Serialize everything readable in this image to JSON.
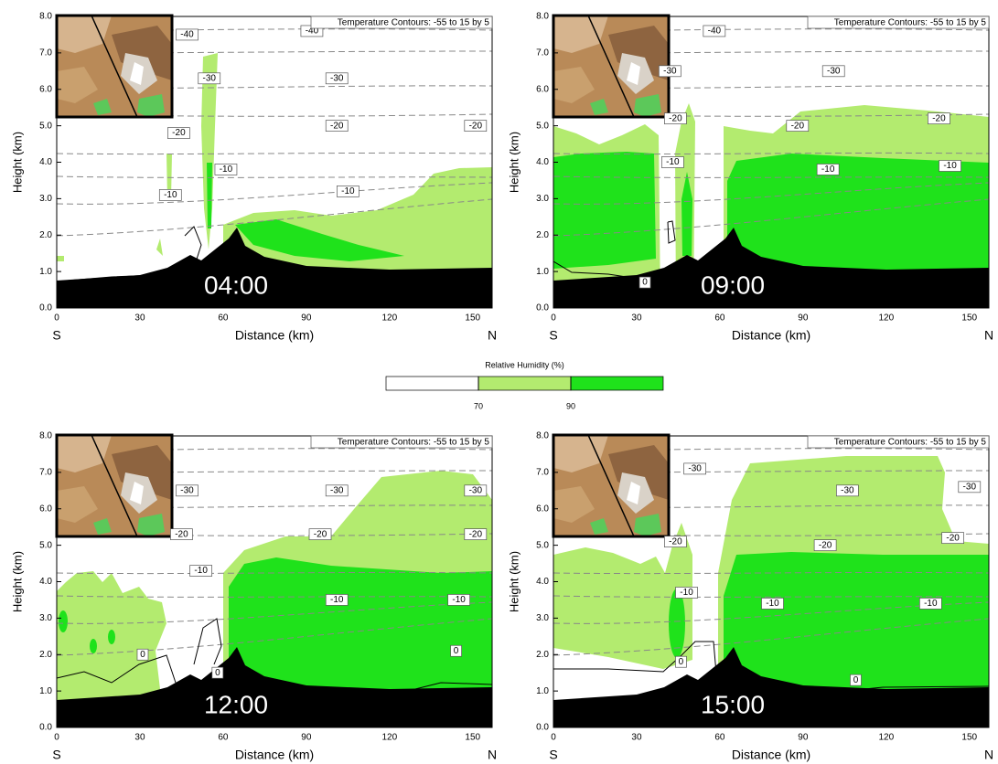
{
  "chart_data": [
    {
      "type": "contour",
      "title": "04:00",
      "subtitle": "Temperature Contours: -55 to 15 by 5",
      "xlabel": "Distance (km)",
      "ylabel": "Height (km)",
      "xstart_label": "S",
      "xend_label": "N",
      "xlim": [
        0,
        157
      ],
      "ylim": [
        0,
        8
      ],
      "xticks": [
        0,
        30,
        60,
        90,
        120,
        150
      ],
      "yticks": [
        {
          "value": 0,
          "label": "0.0"
        },
        {
          "value": 1,
          "label": "1.0"
        },
        {
          "value": 2,
          "label": "2.0"
        },
        {
          "value": 3,
          "label": "3.0"
        },
        {
          "value": 4,
          "label": "4.0"
        },
        {
          "value": 5,
          "label": "5.0"
        },
        {
          "value": 6,
          "label": "6.0"
        },
        {
          "value": 7,
          "label": "7.0"
        },
        {
          "value": 8,
          "label": "8.0"
        }
      ],
      "contour_labels": {
        "x": [
          47,
          92,
          55,
          101,
          44,
          101,
          151,
          61,
          41,
          105
        ],
        "y": [
          7.5,
          7.6,
          6.3,
          6.3,
          4.8,
          5.0,
          5.0,
          3.8,
          3.1,
          3.2
        ],
        "values": [
          -40,
          -40,
          -30,
          -30,
          -20,
          -20,
          -20,
          -10,
          -10,
          -10
        ]
      }
    },
    {
      "type": "contour",
      "title": "09:00",
      "subtitle": "Temperature Contours: -55 to 15 by 5",
      "xlabel": "Distance (km)",
      "ylabel": "Height (km)",
      "xstart_label": "S",
      "xend_label": "N",
      "xlim": [
        0,
        157
      ],
      "ylim": [
        0,
        8
      ],
      "xticks": [
        0,
        30,
        60,
        90,
        120,
        150
      ],
      "yticks": [
        {
          "value": 0,
          "label": "0.0"
        },
        {
          "value": 1,
          "label": "1.0"
        },
        {
          "value": 2,
          "label": "2.0"
        },
        {
          "value": 3,
          "label": "3.0"
        },
        {
          "value": 4,
          "label": "4.0"
        },
        {
          "value": 5,
          "label": "5.0"
        },
        {
          "value": 6,
          "label": "6.0"
        },
        {
          "value": 7,
          "label": "7.0"
        },
        {
          "value": 8,
          "label": "8.0"
        }
      ],
      "contour_labels": {
        "x": [
          58,
          42,
          101,
          44,
          88,
          139,
          43,
          99,
          143,
          33
        ],
        "y": [
          7.6,
          6.5,
          6.5,
          5.2,
          5.0,
          5.2,
          4.0,
          3.8,
          3.9,
          0.7
        ],
        "values": [
          -40,
          -30,
          -30,
          -20,
          -20,
          -20,
          -10,
          -10,
          -10,
          0
        ]
      }
    },
    {
      "type": "contour",
      "title": "12:00",
      "subtitle": "Temperature Contours: -55 to 15 by 5",
      "xlabel": "Distance (km)",
      "ylabel": "Height (km)",
      "xstart_label": "S",
      "xend_label": "N",
      "xlim": [
        0,
        157
      ],
      "ylim": [
        0,
        8
      ],
      "xticks": [
        0,
        30,
        60,
        90,
        120,
        150
      ],
      "yticks": [
        {
          "value": 0,
          "label": "0.0"
        },
        {
          "value": 1,
          "label": "1.0"
        },
        {
          "value": 2,
          "label": "2.0"
        },
        {
          "value": 3,
          "label": "3.0"
        },
        {
          "value": 4,
          "label": "4.0"
        },
        {
          "value": 5,
          "label": "5.0"
        },
        {
          "value": 6,
          "label": "6.0"
        },
        {
          "value": 7,
          "label": "7.0"
        },
        {
          "value": 8,
          "label": "8.0"
        }
      ],
      "contour_labels": {
        "x": [
          47,
          101,
          151,
          45,
          95,
          151,
          52,
          101,
          145,
          31,
          58,
          144
        ],
        "y": [
          6.5,
          6.5,
          6.5,
          5.3,
          5.3,
          5.3,
          4.3,
          3.5,
          3.5,
          2.0,
          1.5,
          2.1
        ],
        "values": [
          -30,
          -30,
          -30,
          -20,
          -20,
          -20,
          -10,
          -10,
          -10,
          0,
          0,
          0
        ]
      }
    },
    {
      "type": "contour",
      "title": "15:00",
      "subtitle": "Temperature Contours: -55 to 15 by 5",
      "xlabel": "Distance (km)",
      "ylabel": "Height (km)",
      "xstart_label": "S",
      "xend_label": "N",
      "xlim": [
        0,
        157
      ],
      "ylim": [
        0,
        8
      ],
      "xticks": [
        0,
        30,
        60,
        90,
        120,
        150
      ],
      "yticks": [
        {
          "value": 0,
          "label": "0.0"
        },
        {
          "value": 1,
          "label": "1.0"
        },
        {
          "value": 2,
          "label": "2.0"
        },
        {
          "value": 3,
          "label": "3.0"
        },
        {
          "value": 4,
          "label": "4.0"
        },
        {
          "value": 5,
          "label": "5.0"
        },
        {
          "value": 6,
          "label": "6.0"
        },
        {
          "value": 7,
          "label": "7.0"
        },
        {
          "value": 8,
          "label": "8.0"
        }
      ],
      "contour_labels": {
        "x": [
          51,
          106,
          150,
          44,
          98,
          144,
          48,
          79,
          136,
          46,
          109
        ],
        "y": [
          7.1,
          6.5,
          6.6,
          5.1,
          5.0,
          5.2,
          3.7,
          3.4,
          3.4,
          1.8,
          1.3
        ],
        "values": [
          -30,
          -30,
          -30,
          -20,
          -20,
          -20,
          -10,
          -10,
          -10,
          0,
          0
        ]
      }
    }
  ],
  "colorbar": {
    "title": "Relative Humidity  (%)",
    "bounds": [
      70,
      90
    ],
    "colors": [
      "#ffffff",
      "#b3eb6f",
      "#1fe21b"
    ]
  }
}
